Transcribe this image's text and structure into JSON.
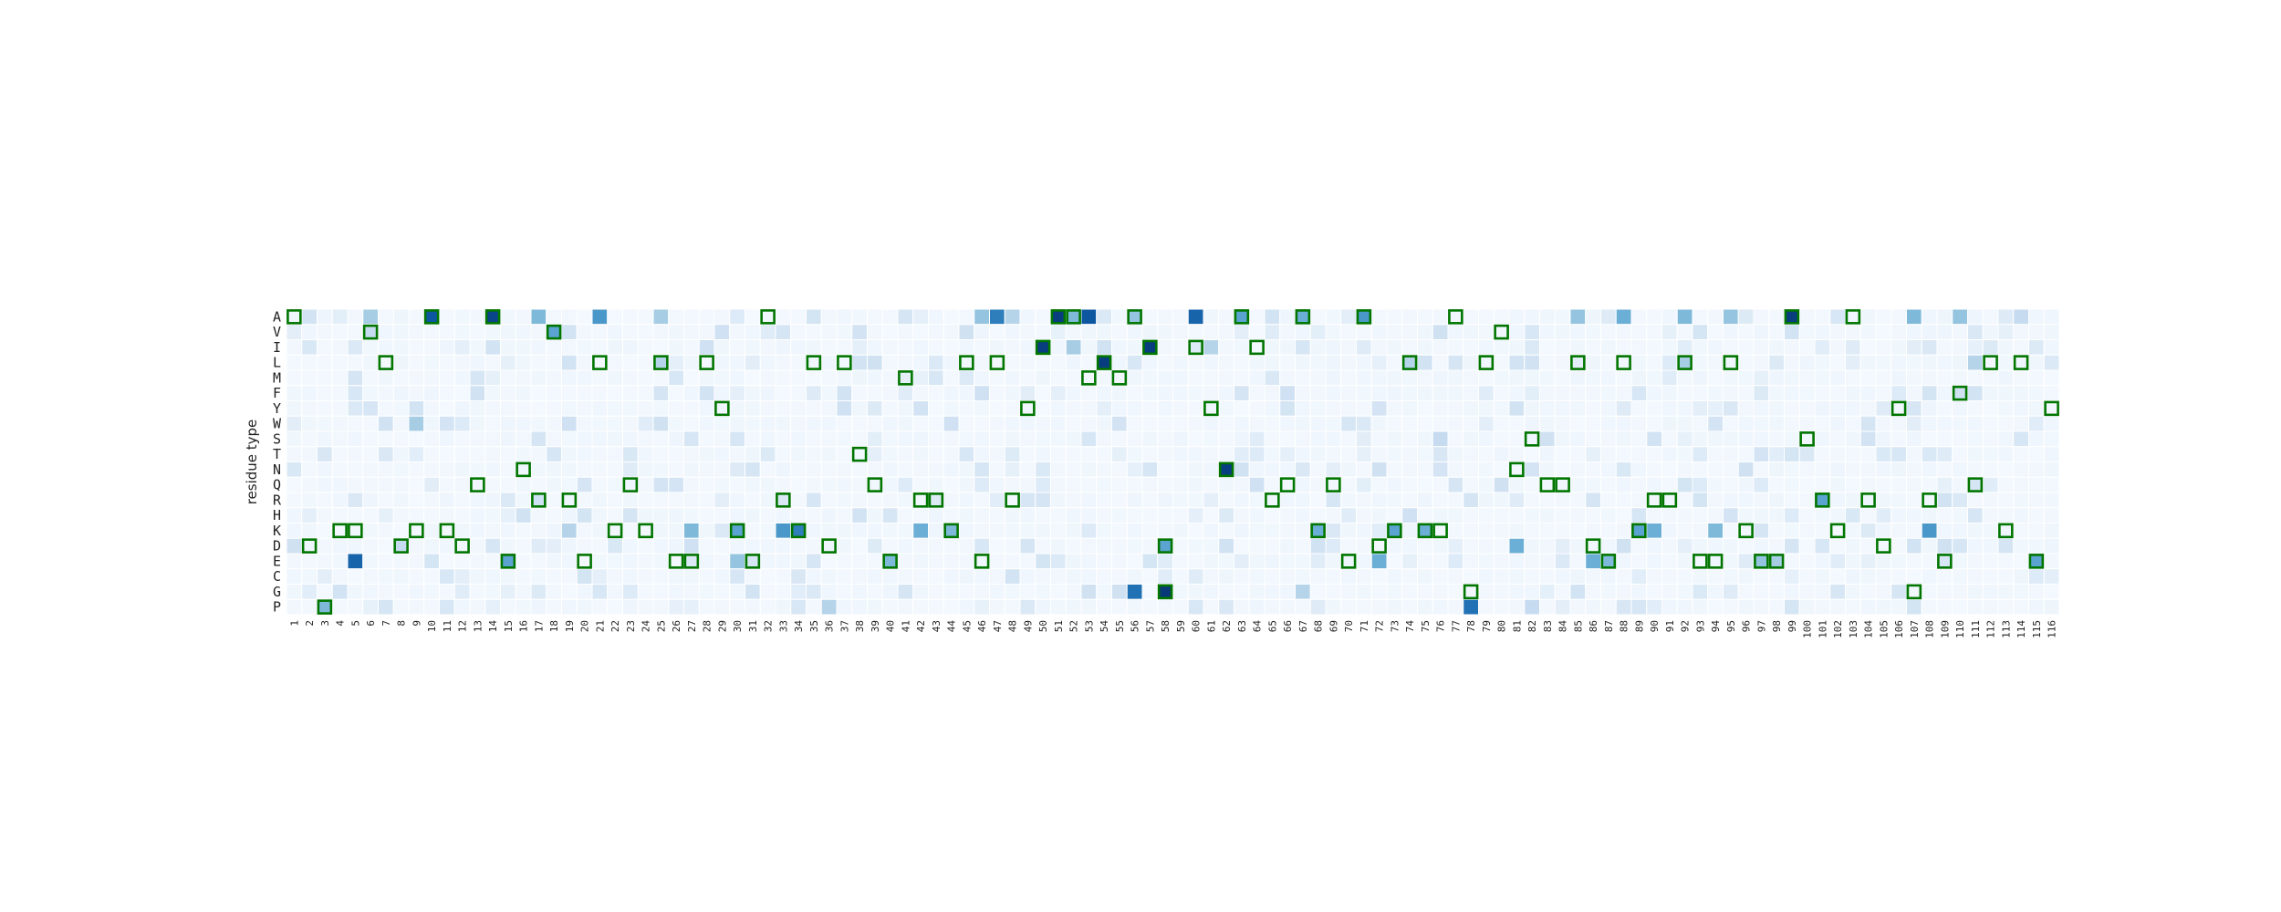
{
  "chart_data": {
    "type": "heatmap",
    "title": "",
    "xlabel": "",
    "ylabel": "residue type",
    "grid": false,
    "legend": "none",
    "colormap": "Blues",
    "highlight_color": "#007500",
    "x_ticks": [
      "1",
      "2",
      "3",
      "4",
      "5",
      "6",
      "7",
      "8",
      "9",
      "10",
      "11",
      "12",
      "13",
      "14",
      "15",
      "16",
      "17",
      "18",
      "19",
      "20",
      "21",
      "22",
      "23",
      "24",
      "25",
      "26",
      "27",
      "28",
      "29",
      "30",
      "31",
      "32",
      "33",
      "34",
      "35",
      "36",
      "37",
      "38",
      "39",
      "40",
      "41",
      "42",
      "43",
      "44",
      "45",
      "46",
      "47",
      "48",
      "49",
      "50",
      "51",
      "52",
      "53",
      "54",
      "55",
      "56",
      "57",
      "58",
      "59",
      "60",
      "61",
      "62",
      "63",
      "64",
      "65",
      "66",
      "67",
      "68",
      "69",
      "70",
      "71",
      "72",
      "73",
      "74",
      "75",
      "76",
      "77",
      "78",
      "79",
      "80",
      "81",
      "82",
      "83",
      "84",
      "85",
      "86",
      "87",
      "88",
      "89",
      "90",
      "91",
      "92",
      "93",
      "94",
      "95",
      "96",
      "97",
      "98",
      "99",
      "100",
      "101",
      "102",
      "103",
      "104",
      "105",
      "106",
      "107",
      "108",
      "109",
      "110",
      "111",
      "112",
      "113",
      "114",
      "115",
      "116"
    ],
    "y_ticks": [
      "A",
      "V",
      "I",
      "L",
      "M",
      "F",
      "Y",
      "W",
      "S",
      "T",
      "N",
      "Q",
      "R",
      "H",
      "K",
      "D",
      "E",
      "C",
      "G",
      "P"
    ],
    "value_range": [
      0,
      1
    ],
    "highlighted": [
      {
        "x": "1",
        "y": "A"
      },
      {
        "x": "10",
        "y": "A"
      },
      {
        "x": "14",
        "y": "A"
      },
      {
        "x": "32",
        "y": "A"
      },
      {
        "x": "51",
        "y": "A"
      },
      {
        "x": "52",
        "y": "A"
      },
      {
        "x": "56",
        "y": "A"
      },
      {
        "x": "63",
        "y": "A"
      },
      {
        "x": "67",
        "y": "A"
      },
      {
        "x": "71",
        "y": "A"
      },
      {
        "x": "77",
        "y": "A"
      },
      {
        "x": "99",
        "y": "A"
      },
      {
        "x": "103",
        "y": "A"
      },
      {
        "x": "6",
        "y": "V"
      },
      {
        "x": "18",
        "y": "V"
      },
      {
        "x": "80",
        "y": "V"
      },
      {
        "x": "50",
        "y": "I"
      },
      {
        "x": "57",
        "y": "I"
      },
      {
        "x": "60",
        "y": "I"
      },
      {
        "x": "64",
        "y": "I"
      },
      {
        "x": "7",
        "y": "L"
      },
      {
        "x": "21",
        "y": "L"
      },
      {
        "x": "25",
        "y": "L"
      },
      {
        "x": "28",
        "y": "L"
      },
      {
        "x": "35",
        "y": "L"
      },
      {
        "x": "37",
        "y": "L"
      },
      {
        "x": "45",
        "y": "L"
      },
      {
        "x": "47",
        "y": "L"
      },
      {
        "x": "54",
        "y": "L"
      },
      {
        "x": "74",
        "y": "L"
      },
      {
        "x": "79",
        "y": "L"
      },
      {
        "x": "85",
        "y": "L"
      },
      {
        "x": "88",
        "y": "L"
      },
      {
        "x": "92",
        "y": "L"
      },
      {
        "x": "95",
        "y": "L"
      },
      {
        "x": "112",
        "y": "L"
      },
      {
        "x": "114",
        "y": "L"
      },
      {
        "x": "41",
        "y": "M"
      },
      {
        "x": "53",
        "y": "M"
      },
      {
        "x": "55",
        "y": "M"
      },
      {
        "x": "110",
        "y": "F"
      },
      {
        "x": "29",
        "y": "Y"
      },
      {
        "x": "49",
        "y": "Y"
      },
      {
        "x": "61",
        "y": "Y"
      },
      {
        "x": "106",
        "y": "Y"
      },
      {
        "x": "116",
        "y": "Y"
      },
      {
        "x": "82",
        "y": "S"
      },
      {
        "x": "100",
        "y": "S"
      },
      {
        "x": "38",
        "y": "T"
      },
      {
        "x": "16",
        "y": "N"
      },
      {
        "x": "62",
        "y": "N"
      },
      {
        "x": "81",
        "y": "N"
      },
      {
        "x": "13",
        "y": "Q"
      },
      {
        "x": "23",
        "y": "Q"
      },
      {
        "x": "39",
        "y": "Q"
      },
      {
        "x": "66",
        "y": "Q"
      },
      {
        "x": "69",
        "y": "Q"
      },
      {
        "x": "83",
        "y": "Q"
      },
      {
        "x": "84",
        "y": "Q"
      },
      {
        "x": "111",
        "y": "Q"
      },
      {
        "x": "17",
        "y": "R"
      },
      {
        "x": "19",
        "y": "R"
      },
      {
        "x": "33",
        "y": "R"
      },
      {
        "x": "42",
        "y": "R"
      },
      {
        "x": "43",
        "y": "R"
      },
      {
        "x": "48",
        "y": "R"
      },
      {
        "x": "65",
        "y": "R"
      },
      {
        "x": "90",
        "y": "R"
      },
      {
        "x": "91",
        "y": "R"
      },
      {
        "x": "101",
        "y": "R"
      },
      {
        "x": "104",
        "y": "R"
      },
      {
        "x": "108",
        "y": "R"
      },
      {
        "x": "4",
        "y": "K"
      },
      {
        "x": "5",
        "y": "K"
      },
      {
        "x": "9",
        "y": "K"
      },
      {
        "x": "11",
        "y": "K"
      },
      {
        "x": "22",
        "y": "K"
      },
      {
        "x": "24",
        "y": "K"
      },
      {
        "x": "30",
        "y": "K"
      },
      {
        "x": "34",
        "y": "K"
      },
      {
        "x": "44",
        "y": "K"
      },
      {
        "x": "68",
        "y": "K"
      },
      {
        "x": "73",
        "y": "K"
      },
      {
        "x": "75",
        "y": "K"
      },
      {
        "x": "76",
        "y": "K"
      },
      {
        "x": "89",
        "y": "K"
      },
      {
        "x": "96",
        "y": "K"
      },
      {
        "x": "102",
        "y": "K"
      },
      {
        "x": "113",
        "y": "K"
      },
      {
        "x": "2",
        "y": "D"
      },
      {
        "x": "8",
        "y": "D"
      },
      {
        "x": "12",
        "y": "D"
      },
      {
        "x": "36",
        "y": "D"
      },
      {
        "x": "58",
        "y": "D"
      },
      {
        "x": "72",
        "y": "D"
      },
      {
        "x": "86",
        "y": "D"
      },
      {
        "x": "105",
        "y": "D"
      },
      {
        "x": "15",
        "y": "E"
      },
      {
        "x": "20",
        "y": "E"
      },
      {
        "x": "26",
        "y": "E"
      },
      {
        "x": "27",
        "y": "E"
      },
      {
        "x": "31",
        "y": "E"
      },
      {
        "x": "40",
        "y": "E"
      },
      {
        "x": "46",
        "y": "E"
      },
      {
        "x": "70",
        "y": "E"
      },
      {
        "x": "87",
        "y": "E"
      },
      {
        "x": "93",
        "y": "E"
      },
      {
        "x": "94",
        "y": "E"
      },
      {
        "x": "97",
        "y": "E"
      },
      {
        "x": "98",
        "y": "E"
      },
      {
        "x": "109",
        "y": "E"
      },
      {
        "x": "115",
        "y": "E"
      },
      {
        "x": "58",
        "y": "G"
      },
      {
        "x": "78",
        "y": "G"
      },
      {
        "x": "107",
        "y": "G"
      },
      {
        "x": "3",
        "y": "P"
      }
    ],
    "cells": [
      {
        "x": "10",
        "y": "A",
        "v": 0.85
      },
      {
        "x": "14",
        "y": "A",
        "v": 0.92
      },
      {
        "x": "51",
        "y": "A",
        "v": 0.95
      },
      {
        "x": "52",
        "y": "A",
        "v": 0.45
      },
      {
        "x": "53",
        "y": "A",
        "v": 0.85
      },
      {
        "x": "46",
        "y": "A",
        "v": 0.4
      },
      {
        "x": "47",
        "y": "A",
        "v": 0.7
      },
      {
        "x": "48",
        "y": "A",
        "v": 0.3
      },
      {
        "x": "56",
        "y": "A",
        "v": 0.4
      },
      {
        "x": "60",
        "y": "A",
        "v": 0.8
      },
      {
        "x": "63",
        "y": "A",
        "v": 0.55
      },
      {
        "x": "67",
        "y": "A",
        "v": 0.5
      },
      {
        "x": "71",
        "y": "A",
        "v": 0.6
      },
      {
        "x": "99",
        "y": "A",
        "v": 0.95
      },
      {
        "x": "6",
        "y": "A",
        "v": 0.35
      },
      {
        "x": "17",
        "y": "A",
        "v": 0.45
      },
      {
        "x": "21",
        "y": "A",
        "v": 0.6
      },
      {
        "x": "25",
        "y": "A",
        "v": 0.35
      },
      {
        "x": "85",
        "y": "A",
        "v": 0.4
      },
      {
        "x": "88",
        "y": "A",
        "v": 0.5
      },
      {
        "x": "92",
        "y": "A",
        "v": 0.45
      },
      {
        "x": "95",
        "y": "A",
        "v": 0.4
      },
      {
        "x": "107",
        "y": "A",
        "v": 0.45
      },
      {
        "x": "110",
        "y": "A",
        "v": 0.4
      },
      {
        "x": "114",
        "y": "A",
        "v": 0.25
      },
      {
        "x": "18",
        "y": "V",
        "v": 0.55
      },
      {
        "x": "6",
        "y": "V",
        "v": 0.25
      },
      {
        "x": "50",
        "y": "I",
        "v": 0.95
      },
      {
        "x": "57",
        "y": "I",
        "v": 0.95
      },
      {
        "x": "52",
        "y": "I",
        "v": 0.35
      },
      {
        "x": "61",
        "y": "I",
        "v": 0.3
      },
      {
        "x": "54",
        "y": "L",
        "v": 0.95
      },
      {
        "x": "25",
        "y": "L",
        "v": 0.3
      },
      {
        "x": "74",
        "y": "L",
        "v": 0.3
      },
      {
        "x": "92",
        "y": "L",
        "v": 0.35
      },
      {
        "x": "111",
        "y": "L",
        "v": 0.3
      },
      {
        "x": "110",
        "y": "F",
        "v": 0.2
      },
      {
        "x": "9",
        "y": "W",
        "v": 0.35
      },
      {
        "x": "76",
        "y": "S",
        "v": 0.25
      },
      {
        "x": "62",
        "y": "N",
        "v": 0.95
      },
      {
        "x": "101",
        "y": "R",
        "v": 0.55
      },
      {
        "x": "34",
        "y": "K",
        "v": 0.7
      },
      {
        "x": "33",
        "y": "K",
        "v": 0.6
      },
      {
        "x": "27",
        "y": "K",
        "v": 0.45
      },
      {
        "x": "30",
        "y": "K",
        "v": 0.55
      },
      {
        "x": "42",
        "y": "K",
        "v": 0.5
      },
      {
        "x": "68",
        "y": "K",
        "v": 0.5
      },
      {
        "x": "73",
        "y": "K",
        "v": 0.55
      },
      {
        "x": "75",
        "y": "K",
        "v": 0.5
      },
      {
        "x": "89",
        "y": "K",
        "v": 0.55
      },
      {
        "x": "90",
        "y": "K",
        "v": 0.5
      },
      {
        "x": "94",
        "y": "K",
        "v": 0.45
      },
      {
        "x": "108",
        "y": "K",
        "v": 0.6
      },
      {
        "x": "44",
        "y": "K",
        "v": 0.45
      },
      {
        "x": "19",
        "y": "K",
        "v": 0.3
      },
      {
        "x": "58",
        "y": "D",
        "v": 0.55
      },
      {
        "x": "81",
        "y": "D",
        "v": 0.5
      },
      {
        "x": "8",
        "y": "D",
        "v": 0.25
      },
      {
        "x": "5",
        "y": "E",
        "v": 0.8
      },
      {
        "x": "15",
        "y": "E",
        "v": 0.55
      },
      {
        "x": "40",
        "y": "E",
        "v": 0.45
      },
      {
        "x": "72",
        "y": "E",
        "v": 0.5
      },
      {
        "x": "86",
        "y": "E",
        "v": 0.5
      },
      {
        "x": "87",
        "y": "E",
        "v": 0.45
      },
      {
        "x": "97",
        "y": "E",
        "v": 0.4
      },
      {
        "x": "98",
        "y": "E",
        "v": 0.35
      },
      {
        "x": "115",
        "y": "E",
        "v": 0.55
      },
      {
        "x": "30",
        "y": "E",
        "v": 0.4
      },
      {
        "x": "56",
        "y": "G",
        "v": 0.75
      },
      {
        "x": "58",
        "y": "G",
        "v": 0.97
      },
      {
        "x": "67",
        "y": "G",
        "v": 0.3
      },
      {
        "x": "3",
        "y": "P",
        "v": 0.45
      },
      {
        "x": "78",
        "y": "P",
        "v": 0.75
      },
      {
        "x": "36",
        "y": "P",
        "v": 0.3
      },
      {
        "x": "82",
        "y": "P",
        "v": 0.25
      }
    ],
    "background_level": 0.03
  }
}
